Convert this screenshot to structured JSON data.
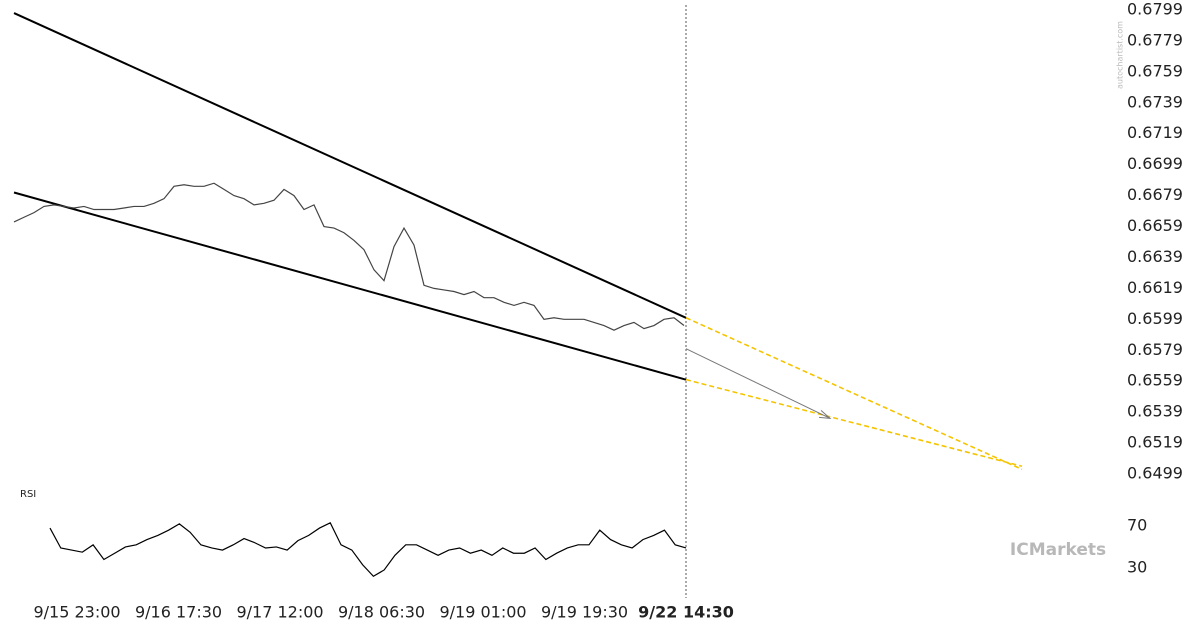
{
  "chart_data": [
    {
      "type": "line",
      "values": [
        0.6662,
        0.6665,
        0.6668,
        0.6672,
        0.6673,
        0.6672,
        0.6671,
        0.6672,
        0.667,
        0.667,
        0.667,
        0.6671,
        0.6672,
        0.6672,
        0.6674,
        0.6677,
        0.6685,
        0.6686,
        0.6685,
        0.6685,
        0.6687,
        0.6683,
        0.6679,
        0.6677,
        0.6673,
        0.6674,
        0.6676,
        0.6683,
        0.6679,
        0.667,
        0.6673,
        0.6659,
        0.6658,
        0.6655,
        0.665,
        0.6644,
        0.6631,
        0.6624,
        0.6646,
        0.6658,
        0.6647,
        0.6621,
        0.6619,
        0.6618,
        0.6617,
        0.6615,
        0.6617,
        0.6613,
        0.6613,
        0.661,
        0.6608,
        0.661,
        0.6608,
        0.6599,
        0.66,
        0.6599,
        0.6599,
        0.6599,
        0.6597,
        0.6595,
        0.6592,
        0.6595,
        0.6597,
        0.6593,
        0.6595,
        0.6599,
        0.66,
        0.6595
      ],
      "color": "#444444",
      "ylim": [
        0.6499,
        0.6799
      ],
      "yticks": [
        0.6499,
        0.6519,
        0.6539,
        0.6559,
        0.6579,
        0.6599,
        0.6619,
        0.6639,
        0.6659,
        0.6679,
        0.6699,
        0.6719,
        0.6739,
        0.6759,
        0.6779,
        0.6799
      ],
      "xtick_labels": [
        "9/15 23:00",
        "9/16 17:30",
        "9/17 12:00",
        "9/18 06:30",
        "9/19 01:00",
        "9/19 19:30",
        "9/22 14:30"
      ],
      "upper_trendline": [
        0.6797,
        0.66
      ],
      "lower_trendline": [
        0.6681,
        0.656
      ],
      "projection_upper": [
        0.66,
        0.6502
      ],
      "projection_lower": [
        0.656,
        0.6504
      ],
      "forecast_arrow": [
        0.658,
        0.6535
      ],
      "projection_color": "#f5c400"
    },
    {
      "type": "line",
      "label": "RSI",
      "values": [
        68,
        49,
        47,
        45,
        52,
        38,
        44,
        50,
        52,
        57,
        61,
        66,
        72,
        64,
        52,
        49,
        47,
        52,
        58,
        54,
        49,
        50,
        47,
        56,
        61,
        68,
        73,
        52,
        47,
        33,
        22,
        28,
        42,
        52,
        52,
        47,
        42,
        47,
        49,
        44,
        47,
        42,
        49,
        44,
        44,
        49,
        38,
        44,
        49,
        52,
        52,
        66,
        57,
        52,
        49,
        57,
        61,
        66,
        52,
        49
      ],
      "color": "#000000",
      "ylim": [
        15,
        80
      ],
      "yticks": [
        30,
        70
      ]
    }
  ],
  "watermark": "ICMarkets",
  "source": "autochartist.com"
}
